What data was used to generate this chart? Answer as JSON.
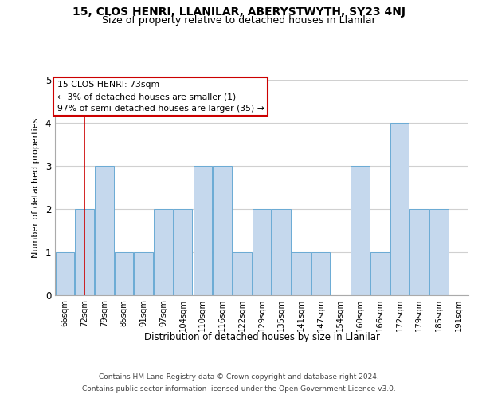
{
  "title": "15, CLOS HENRI, LLANILAR, ABERYSTWYTH, SY23 4NJ",
  "subtitle": "Size of property relative to detached houses in Llanilar",
  "xlabel": "Distribution of detached houses by size in Llanilar",
  "ylabel": "Number of detached properties",
  "categories": [
    "66sqm",
    "72sqm",
    "79sqm",
    "85sqm",
    "91sqm",
    "97sqm",
    "104sqm",
    "110sqm",
    "116sqm",
    "122sqm",
    "129sqm",
    "135sqm",
    "141sqm",
    "147sqm",
    "154sqm",
    "160sqm",
    "166sqm",
    "172sqm",
    "179sqm",
    "185sqm",
    "191sqm"
  ],
  "values": [
    1,
    2,
    3,
    1,
    1,
    2,
    2,
    3,
    3,
    1,
    2,
    2,
    1,
    1,
    0,
    3,
    1,
    4,
    2,
    2,
    0
  ],
  "bar_color": "#c5d8ed",
  "bar_edge_color": "#6aaad4",
  "reference_line_x": 1,
  "reference_line_color": "#cc0000",
  "annotation_text": "15 CLOS HENRI: 73sqm\n← 3% of detached houses are smaller (1)\n97% of semi-detached houses are larger (35) →",
  "annotation_box_color": "#ffffff",
  "annotation_box_edge_color": "#cc0000",
  "ylim": [
    0,
    5
  ],
  "yticks": [
    0,
    1,
    2,
    3,
    4,
    5
  ],
  "grid_color": "#d0d0d0",
  "background_color": "#ffffff",
  "footer_line1": "Contains HM Land Registry data © Crown copyright and database right 2024.",
  "footer_line2": "Contains public sector information licensed under the Open Government Licence v3.0."
}
